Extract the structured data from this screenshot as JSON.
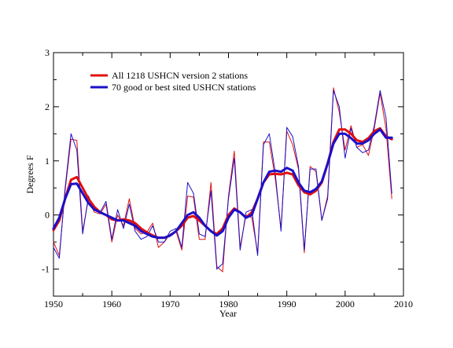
{
  "chart_data": {
    "type": "line",
    "title": "",
    "xlabel": "Year",
    "ylabel": "Degrees F",
    "xlim": [
      1950,
      2010
    ],
    "ylim": [
      -1.5,
      3
    ],
    "xticks": [
      1950,
      1960,
      1970,
      1980,
      1990,
      2000,
      2010
    ],
    "yticks": [
      -1,
      0,
      1,
      2,
      3
    ],
    "grid": false,
    "legend_position": "top-left",
    "x": [
      1950,
      1951,
      1952,
      1953,
      1954,
      1955,
      1956,
      1957,
      1958,
      1959,
      1960,
      1961,
      1962,
      1963,
      1964,
      1965,
      1966,
      1967,
      1968,
      1969,
      1970,
      1971,
      1972,
      1973,
      1974,
      1975,
      1976,
      1977,
      1978,
      1979,
      1980,
      1981,
      1982,
      1983,
      1984,
      1985,
      1986,
      1987,
      1988,
      1989,
      1990,
      1991,
      1992,
      1993,
      1994,
      1995,
      1996,
      1997,
      1998,
      1999,
      2000,
      2001,
      2002,
      2003,
      2004,
      2005,
      2006,
      2007,
      2008
    ],
    "series": [
      {
        "name": "All 1218 USHCN version 2 stations",
        "color": "#e01010",
        "role": "annual",
        "values": [
          -0.5,
          -0.75,
          0.45,
          1.4,
          1.38,
          -0.3,
          0.3,
          0.05,
          0.02,
          0.2,
          -0.5,
          0.0,
          -0.2,
          0.3,
          -0.25,
          -0.35,
          -0.32,
          -0.15,
          -0.6,
          -0.5,
          -0.35,
          -0.3,
          -0.65,
          0.35,
          0.33,
          -0.45,
          -0.45,
          0.6,
          -0.95,
          -1.05,
          0.35,
          1.18,
          -0.6,
          0.0,
          -0.05,
          -0.7,
          1.35,
          1.35,
          0.7,
          -0.25,
          1.55,
          1.3,
          0.85,
          -0.7,
          0.9,
          0.8,
          -0.1,
          0.35,
          2.35,
          1.9,
          1.2,
          1.65,
          1.25,
          1.3,
          1.1,
          1.6,
          2.25,
          1.6,
          0.3
        ]
      },
      {
        "name": "70 good or best sited USHCN stations",
        "color": "#1a10c8",
        "role": "annual",
        "values": [
          -0.6,
          -0.8,
          0.5,
          1.5,
          1.2,
          -0.35,
          0.35,
          0.1,
          0.05,
          0.25,
          -0.45,
          0.1,
          -0.25,
          0.2,
          -0.3,
          -0.45,
          -0.4,
          -0.2,
          -0.5,
          -0.5,
          -0.3,
          -0.25,
          -0.6,
          0.6,
          0.4,
          -0.35,
          -0.4,
          0.45,
          -1.0,
          -0.9,
          0.3,
          1.05,
          -0.65,
          0.05,
          0.1,
          -0.75,
          1.3,
          1.5,
          0.8,
          -0.3,
          1.62,
          1.45,
          0.9,
          -0.65,
          0.85,
          0.85,
          -0.1,
          0.3,
          2.3,
          2.0,
          1.05,
          1.6,
          1.25,
          1.15,
          1.2,
          1.65,
          2.3,
          1.8,
          0.4
        ]
      },
      {
        "name": "All 1218 USHCN version 2 stations",
        "color": "#e01010",
        "role": "smoothed",
        "values": [
          -0.28,
          -0.1,
          0.3,
          0.65,
          0.7,
          0.5,
          0.3,
          0.15,
          0.05,
          0.0,
          -0.08,
          -0.1,
          -0.08,
          -0.1,
          -0.15,
          -0.25,
          -0.32,
          -0.38,
          -0.42,
          -0.42,
          -0.38,
          -0.3,
          -0.2,
          -0.05,
          -0.02,
          -0.1,
          -0.2,
          -0.3,
          -0.35,
          -0.25,
          0.0,
          0.12,
          0.05,
          -0.05,
          0.05,
          0.3,
          0.6,
          0.75,
          0.76,
          0.75,
          0.78,
          0.75,
          0.55,
          0.42,
          0.38,
          0.45,
          0.6,
          0.95,
          1.35,
          1.58,
          1.58,
          1.5,
          1.38,
          1.35,
          1.42,
          1.55,
          1.6,
          1.45,
          1.4
        ]
      },
      {
        "name": "70 good or best sited USHCN stations",
        "color": "#1a10c8",
        "role": "smoothed",
        "values": [
          -0.25,
          -0.05,
          0.3,
          0.57,
          0.58,
          0.4,
          0.22,
          0.1,
          0.05,
          0.0,
          -0.05,
          -0.1,
          -0.1,
          -0.15,
          -0.2,
          -0.3,
          -0.35,
          -0.4,
          -0.42,
          -0.42,
          -0.38,
          -0.3,
          -0.15,
          0.0,
          0.05,
          -0.05,
          -0.2,
          -0.3,
          -0.38,
          -0.3,
          -0.05,
          0.1,
          0.05,
          -0.05,
          0.0,
          0.3,
          0.6,
          0.8,
          0.82,
          0.8,
          0.87,
          0.82,
          0.6,
          0.45,
          0.42,
          0.48,
          0.62,
          0.95,
          1.32,
          1.5,
          1.5,
          1.42,
          1.32,
          1.32,
          1.38,
          1.5,
          1.58,
          1.43,
          1.43
        ]
      }
    ]
  }
}
